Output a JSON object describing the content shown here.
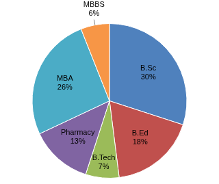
{
  "chart_data": {
    "type": "pie",
    "categories": [
      "B.Sc",
      "B.Ed",
      "B.Tech",
      "Pharmacy",
      "MBA",
      "MBBS"
    ],
    "values": [
      30,
      18,
      7,
      13,
      26,
      6
    ],
    "value_labels": [
      "30%",
      "18%",
      "7%",
      "13%",
      "26%",
      "6%"
    ],
    "colors": [
      "#4f81bd",
      "#c0504d",
      "#9bbb59",
      "#8064a2",
      "#4bacc6",
      "#f79646"
    ],
    "data_labels": true
  }
}
